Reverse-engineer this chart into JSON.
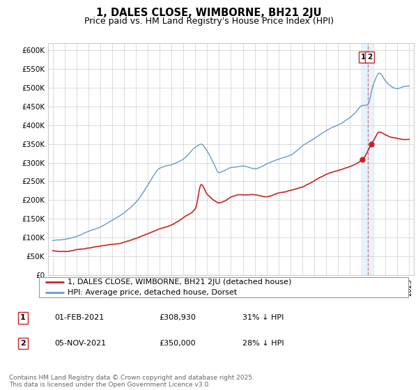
{
  "title": "1, DALES CLOSE, WIMBORNE, BH21 2JU",
  "subtitle": "Price paid vs. HM Land Registry's House Price Index (HPI)",
  "ylim": [
    0,
    620000
  ],
  "ytick_vals": [
    0,
    50000,
    100000,
    150000,
    200000,
    250000,
    300000,
    350000,
    400000,
    450000,
    500000,
    550000,
    600000
  ],
  "hpi_color": "#6699cc",
  "price_color": "#cc2222",
  "vline_color": "#cc6666",
  "shade_color": "#ddeeff",
  "vline_x": 2021.5,
  "marker1_x": 2021.08,
  "marker1_y": 308930,
  "marker2_x": 2021.84,
  "marker2_y": 350000,
  "legend1": "1, DALES CLOSE, WIMBORNE, BH21 2JU (detached house)",
  "legend2": "HPI: Average price, detached house, Dorset",
  "table_row1": [
    "1",
    "01-FEB-2021",
    "£308,930",
    "31% ↓ HPI"
  ],
  "table_row2": [
    "2",
    "05-NOV-2021",
    "£350,000",
    "28% ↓ HPI"
  ],
  "footer": "Contains HM Land Registry data © Crown copyright and database right 2025.\nThis data is licensed under the Open Government Licence v3.0.",
  "background_color": "#ffffff",
  "xlim_left": 1994.6,
  "xlim_right": 2025.4
}
